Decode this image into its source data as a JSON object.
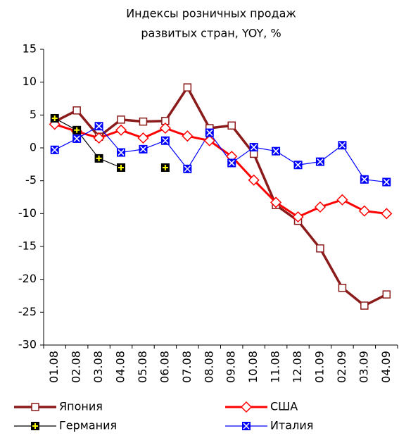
{
  "chart_data": {
    "type": "line",
    "title": [
      "Индексы розничных продаж",
      "развитых стран, YOY, %"
    ],
    "categories": [
      "01.08",
      "02.08",
      "03.08",
      "04.08",
      "05.08",
      "06.08",
      "07.08",
      "08.08",
      "09.08",
      "10.08",
      "11.08",
      "12.08",
      "01.09",
      "02.09",
      "03.09",
      "04.09"
    ],
    "series": [
      {
        "name": "Япония",
        "color": "#8b1a1a",
        "marker": "square",
        "values": [
          4.0,
          5.7,
          1.7,
          4.3,
          4.0,
          4.1,
          9.2,
          3.0,
          3.4,
          -0.9,
          -8.7,
          -11.1,
          -15.3,
          -21.3,
          -24.0,
          -22.3
        ]
      },
      {
        "name": "США",
        "color": "#ff0000",
        "marker": "diamond",
        "values": [
          3.6,
          2.5,
          1.5,
          2.7,
          1.5,
          3.0,
          1.8,
          1.1,
          -1.3,
          -4.9,
          -8.3,
          -10.5,
          -9.0,
          -7.9,
          -9.6,
          -10.0
        ]
      },
      {
        "name": "Германия",
        "color": "#000000",
        "marker": "plus",
        "values": [
          4.5,
          2.7,
          -1.6,
          -3.0,
          null,
          -3.0,
          null,
          null,
          null,
          null,
          null,
          null,
          null,
          null,
          null,
          null
        ]
      },
      {
        "name": "Италия",
        "color": "#0000ff",
        "marker": "cross",
        "values": [
          -0.3,
          1.4,
          3.3,
          -0.7,
          -0.2,
          1.1,
          -3.2,
          2.3,
          -2.3,
          0.1,
          -0.5,
          -2.6,
          -2.1,
          0.4,
          -4.8,
          -5.2
        ]
      }
    ],
    "ylim": [
      -30,
      15
    ],
    "yticks": [
      -30,
      -25,
      -20,
      -15,
      -10,
      -5,
      0,
      5,
      10,
      15
    ],
    "grid": false
  }
}
